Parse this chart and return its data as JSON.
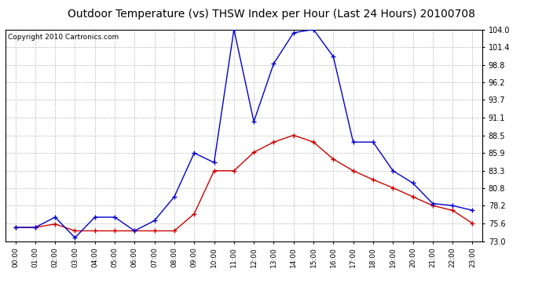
{
  "title": "Outdoor Temperature (vs) THSW Index per Hour (Last 24 Hours) 20100708",
  "copyright": "Copyright 2010 Cartronics.com",
  "hours": [
    "00:00",
    "01:00",
    "02:00",
    "03:00",
    "04:00",
    "05:00",
    "06:00",
    "07:00",
    "08:00",
    "09:00",
    "10:00",
    "11:00",
    "12:00",
    "13:00",
    "14:00",
    "15:00",
    "16:00",
    "17:00",
    "18:00",
    "19:00",
    "20:00",
    "21:00",
    "22:00",
    "23:00"
  ],
  "temp": [
    75.0,
    75.0,
    75.5,
    74.5,
    74.5,
    74.5,
    74.5,
    74.5,
    74.5,
    77.0,
    83.3,
    83.3,
    86.0,
    87.5,
    88.5,
    87.5,
    85.0,
    83.3,
    82.0,
    80.8,
    79.5,
    78.2,
    77.5,
    75.6
  ],
  "thsw": [
    75.0,
    75.0,
    76.5,
    73.5,
    76.5,
    76.5,
    74.5,
    76.0,
    79.5,
    85.9,
    84.5,
    104.0,
    90.5,
    99.0,
    103.5,
    104.0,
    100.0,
    87.5,
    87.5,
    83.3,
    81.5,
    78.5,
    78.2,
    77.5
  ],
  "ylim": [
    73.0,
    104.0
  ],
  "yticks": [
    73.0,
    75.6,
    78.2,
    80.8,
    83.3,
    85.9,
    88.5,
    91.1,
    93.7,
    96.2,
    98.8,
    101.4,
    104.0
  ],
  "temp_color": "#cc0000",
  "thsw_color": "#0000cc",
  "bg_color": "#ffffff",
  "grid_color": "#bbbbbb",
  "title_fontsize": 10,
  "copyright_fontsize": 6.5
}
